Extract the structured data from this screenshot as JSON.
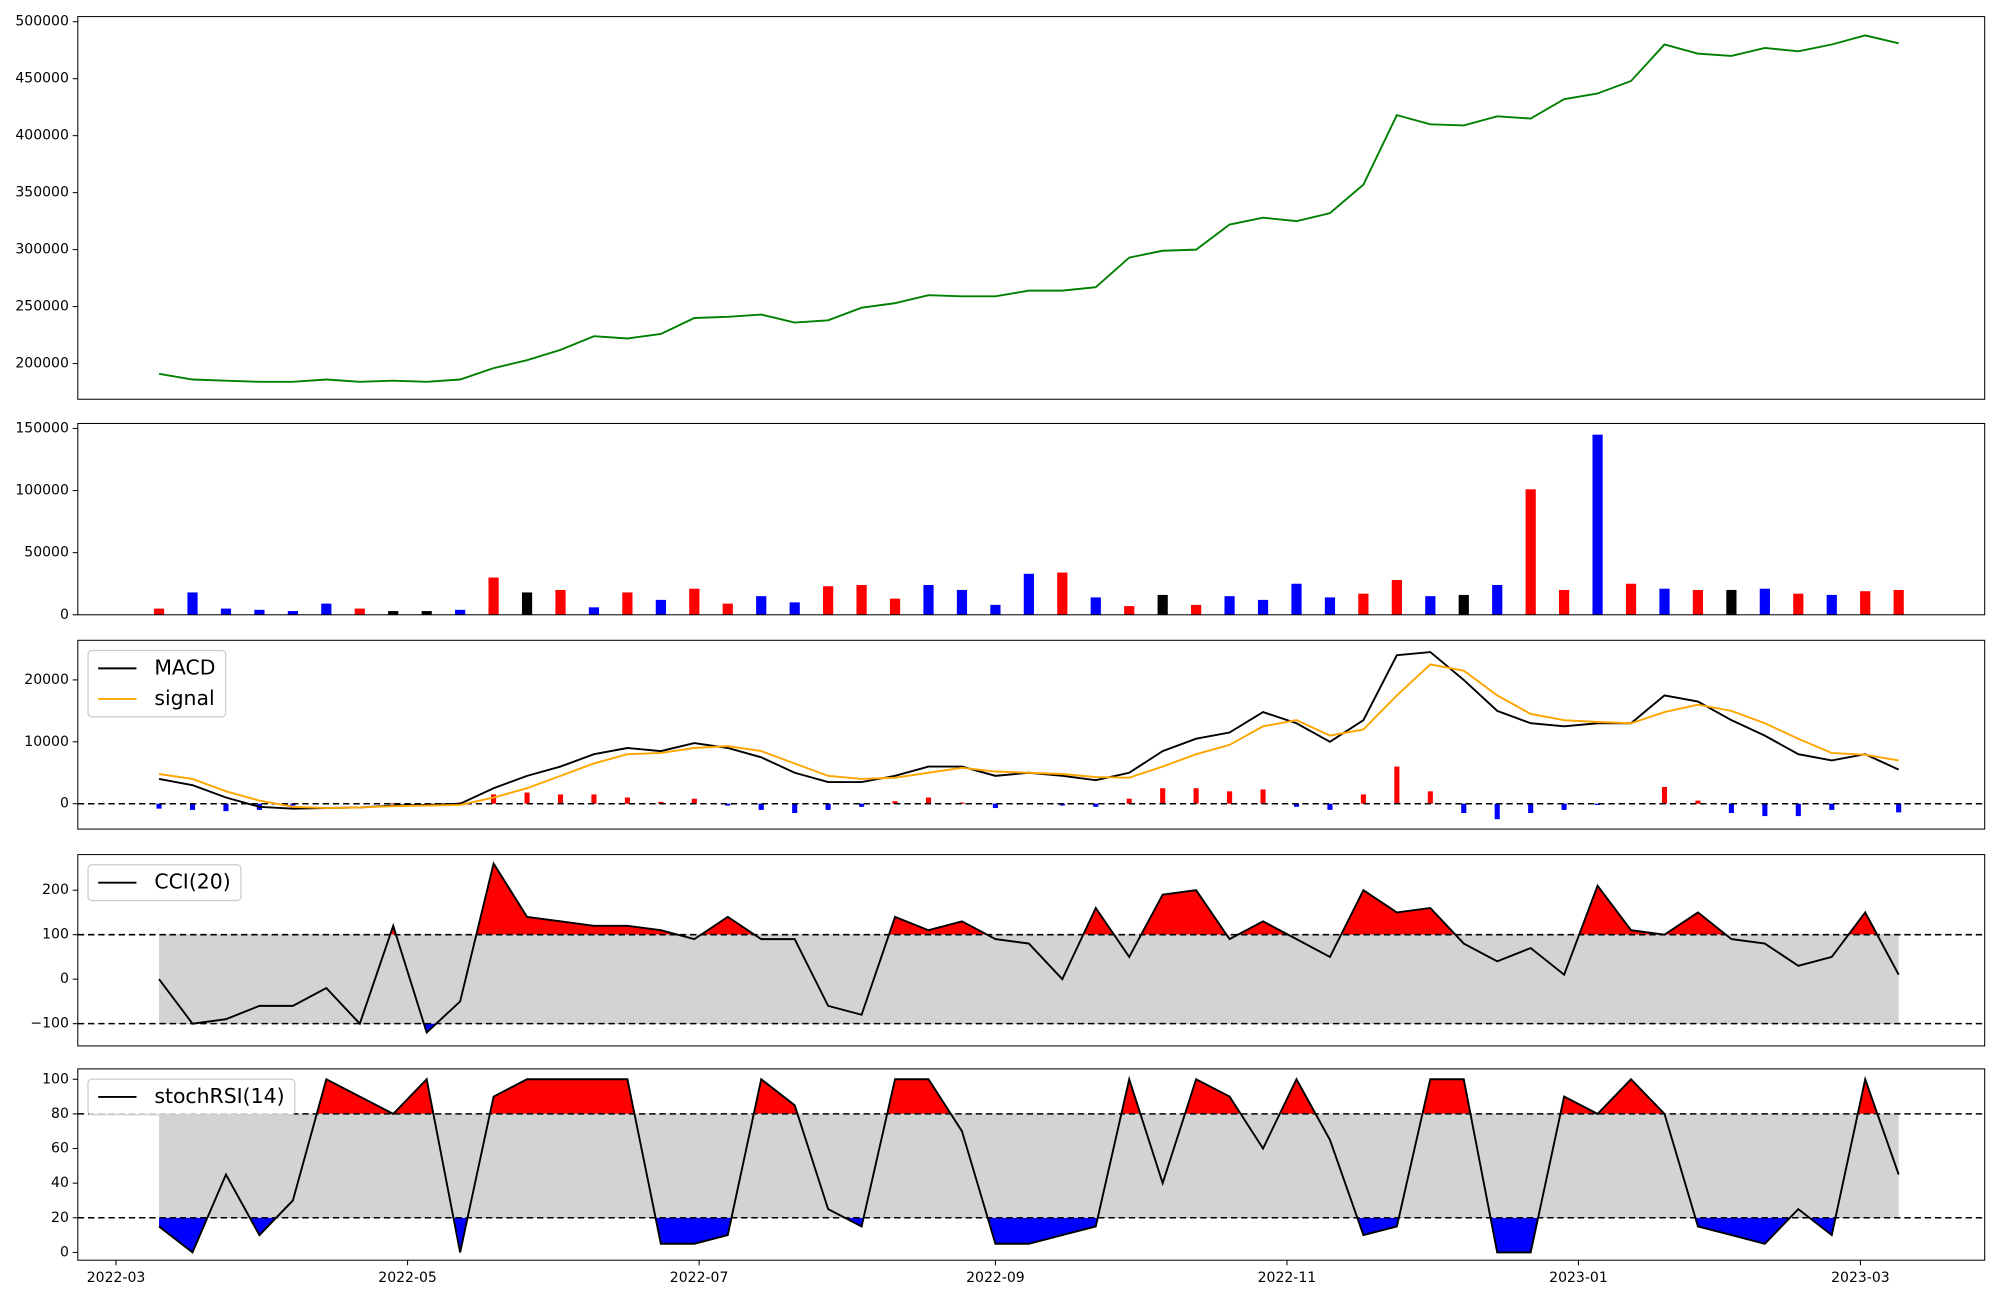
{
  "chart_data": [
    {
      "type": "line",
      "color": "green",
      "x": [
        "2022-03-10",
        "2022-03-17",
        "2022-03-24",
        "2022-03-31",
        "2022-04-07",
        "2022-04-14",
        "2022-04-21",
        "2022-04-28",
        "2022-05-05",
        "2022-05-12",
        "2022-05-19",
        "2022-05-26",
        "2022-06-02",
        "2022-06-09",
        "2022-06-16",
        "2022-06-23",
        "2022-06-30",
        "2022-07-07",
        "2022-07-14",
        "2022-07-21",
        "2022-07-28",
        "2022-08-04",
        "2022-08-11",
        "2022-08-18",
        "2022-08-25",
        "2022-09-01",
        "2022-09-08",
        "2022-09-15",
        "2022-09-22",
        "2022-09-29",
        "2022-10-06",
        "2022-10-13",
        "2022-10-20",
        "2022-10-27",
        "2022-11-03",
        "2022-11-10",
        "2022-11-17",
        "2022-11-24",
        "2022-12-01",
        "2022-12-08",
        "2022-12-15",
        "2022-12-22",
        "2022-12-29",
        "2023-01-05",
        "2023-01-12",
        "2023-01-19",
        "2023-01-26",
        "2023-02-02",
        "2023-02-09",
        "2023-02-16",
        "2023-02-23",
        "2023-03-02",
        "2023-03-09"
      ],
      "values": [
        191000,
        186000,
        185000,
        184000,
        184000,
        186000,
        184000,
        185000,
        184000,
        186000,
        196000,
        203000,
        212000,
        224000,
        222000,
        226000,
        240000,
        241000,
        243000,
        236000,
        238000,
        249000,
        253000,
        260000,
        259000,
        259000,
        264000,
        264000,
        267000,
        293000,
        299000,
        300000,
        322000,
        328000,
        325000,
        332000,
        357000,
        418000,
        410000,
        409000,
        417000,
        415000,
        432000,
        437000,
        448000,
        480000,
        472000,
        470000,
        477000,
        474000,
        480000,
        488000,
        481000
      ],
      "xlim": [
        "2022-02-21",
        "2023-03-27"
      ],
      "ylim": [
        168700,
        504500
      ],
      "yticks": [
        200000,
        250000,
        300000,
        350000,
        400000,
        450000,
        500000
      ]
    },
    {
      "type": "bar",
      "x": [
        "2022-03-10",
        "2022-03-17",
        "2022-03-24",
        "2022-03-31",
        "2022-04-07",
        "2022-04-14",
        "2022-04-21",
        "2022-04-28",
        "2022-05-05",
        "2022-05-12",
        "2022-05-19",
        "2022-05-26",
        "2022-06-02",
        "2022-06-09",
        "2022-06-16",
        "2022-06-23",
        "2022-06-30",
        "2022-07-07",
        "2022-07-14",
        "2022-07-21",
        "2022-07-28",
        "2022-08-04",
        "2022-08-11",
        "2022-08-18",
        "2022-08-25",
        "2022-09-01",
        "2022-09-08",
        "2022-09-15",
        "2022-09-22",
        "2022-09-29",
        "2022-10-06",
        "2022-10-13",
        "2022-10-20",
        "2022-10-27",
        "2022-11-03",
        "2022-11-10",
        "2022-11-17",
        "2022-11-24",
        "2022-12-01",
        "2022-12-08",
        "2022-12-15",
        "2022-12-22",
        "2022-12-29",
        "2023-01-05",
        "2023-01-12",
        "2023-01-19",
        "2023-01-26",
        "2023-02-02",
        "2023-02-09",
        "2023-02-16",
        "2023-02-23",
        "2023-03-02",
        "2023-03-09"
      ],
      "values": [
        5000,
        18000,
        5000,
        4000,
        3000,
        9000,
        5000,
        3000,
        3000,
        4000,
        30000,
        18000,
        20000,
        6000,
        18000,
        12000,
        21000,
        9000,
        15000,
        10000,
        23000,
        24000,
        13000,
        24000,
        20000,
        8000,
        33000,
        34000,
        14000,
        7000,
        16000,
        8000,
        15000,
        12000,
        25000,
        14000,
        17000,
        28000,
        15000,
        16000,
        24000,
        101000,
        20000,
        145000,
        25000,
        21000,
        20000,
        20000,
        21000,
        17000,
        16000,
        19000,
        20000
      ],
      "colors": [
        "red",
        "blue",
        "blue",
        "blue",
        "blue",
        "blue",
        "red",
        "black",
        "black",
        "blue",
        "red",
        "black",
        "red",
        "blue",
        "red",
        "blue",
        "red",
        "red",
        "blue",
        "blue",
        "red",
        "red",
        "red",
        "blue",
        "blue",
        "blue",
        "blue",
        "red",
        "blue",
        "red",
        "black",
        "red",
        "blue",
        "blue",
        "blue",
        "blue",
        "red",
        "red",
        "blue",
        "black",
        "blue",
        "red",
        "red",
        "blue",
        "red",
        "blue",
        "red",
        "black",
        "blue",
        "red",
        "blue",
        "red",
        "red"
      ],
      "xlim": [
        "2022-02-21",
        "2023-03-27"
      ],
      "ylim": [
        0,
        154000
      ],
      "yticks": [
        0,
        50000,
        100000,
        150000
      ]
    },
    {
      "type": "macd",
      "x": [
        "2022-03-10",
        "2022-03-17",
        "2022-03-24",
        "2022-03-31",
        "2022-04-07",
        "2022-04-14",
        "2022-04-21",
        "2022-04-28",
        "2022-05-05",
        "2022-05-12",
        "2022-05-19",
        "2022-05-26",
        "2022-06-02",
        "2022-06-09",
        "2022-06-16",
        "2022-06-23",
        "2022-06-30",
        "2022-07-07",
        "2022-07-14",
        "2022-07-21",
        "2022-07-28",
        "2022-08-04",
        "2022-08-11",
        "2022-08-18",
        "2022-08-25",
        "2022-09-01",
        "2022-09-08",
        "2022-09-15",
        "2022-09-22",
        "2022-09-29",
        "2022-10-06",
        "2022-10-13",
        "2022-10-20",
        "2022-10-27",
        "2022-11-03",
        "2022-11-10",
        "2022-11-17",
        "2022-11-24",
        "2022-12-01",
        "2022-12-08",
        "2022-12-15",
        "2022-12-22",
        "2022-12-29",
        "2023-01-05",
        "2023-01-12",
        "2023-01-19",
        "2023-01-26",
        "2023-02-02",
        "2023-02-09",
        "2023-02-16",
        "2023-02-23",
        "2023-03-02",
        "2023-03-09"
      ],
      "series": [
        {
          "name": "MACD",
          "color": "black",
          "values": [
            4000,
            3000,
            1000,
            -500,
            -800,
            -700,
            -600,
            -300,
            -200,
            0,
            2500,
            4500,
            6000,
            8000,
            9000,
            8500,
            9800,
            9000,
            7500,
            5000,
            3500,
            3500,
            4500,
            6000,
            6000,
            4500,
            5000,
            4500,
            3800,
            5000,
            8500,
            10500,
            11500,
            14800,
            13000,
            10000,
            13500,
            24000,
            24500,
            20000,
            15000,
            13000,
            12500,
            13000,
            13000,
            17500,
            16500,
            13500,
            11000,
            8000,
            7000,
            8000,
            5500
          ]
        },
        {
          "name": "signal",
          "color": "orange",
          "values": [
            4800,
            4000,
            2000,
            500,
            -500,
            -700,
            -600,
            -400,
            -300,
            -200,
            1000,
            2500,
            4500,
            6500,
            8000,
            8200,
            9000,
            9300,
            8500,
            6500,
            4500,
            4000,
            4200,
            5000,
            5800,
            5200,
            5000,
            4800,
            4300,
            4200,
            6000,
            8000,
            9500,
            12500,
            13500,
            11000,
            12000,
            17500,
            22500,
            21500,
            17500,
            14500,
            13500,
            13200,
            13000,
            14800,
            16000,
            15000,
            13000,
            10500,
            8200,
            7900,
            7000
          ]
        }
      ],
      "histogram": {
        "positive_color": "red",
        "negative_color": "blue",
        "values": [
          -800,
          -1000,
          -1200,
          -1000,
          -300,
          0,
          0,
          100,
          100,
          200,
          1500,
          1800,
          1500,
          1500,
          1000,
          300,
          800,
          -300,
          -1000,
          -1500,
          -1000,
          -500,
          400,
          1000,
          200,
          -700,
          0,
          -300,
          -500,
          800,
          2500,
          2500,
          2000,
          2300,
          -500,
          -1000,
          1500,
          6000,
          2000,
          -1500,
          -2500,
          -1500,
          -1000,
          -200,
          0,
          2700,
          500,
          -1500,
          -2000,
          -2000,
          -1000,
          100,
          -1400
        ]
      },
      "hline": 0,
      "legend": "upper left",
      "xlim": [
        "2022-02-21",
        "2023-03-27"
      ],
      "ylim": [
        -4100,
        26400
      ],
      "yticks": [
        0,
        10000,
        20000
      ]
    },
    {
      "type": "band",
      "x": [
        "2022-03-10",
        "2022-03-17",
        "2022-03-24",
        "2022-03-31",
        "2022-04-07",
        "2022-04-14",
        "2022-04-21",
        "2022-04-28",
        "2022-05-05",
        "2022-05-12",
        "2022-05-19",
        "2022-05-26",
        "2022-06-02",
        "2022-06-09",
        "2022-06-16",
        "2022-06-23",
        "2022-06-30",
        "2022-07-07",
        "2022-07-14",
        "2022-07-21",
        "2022-07-28",
        "2022-08-04",
        "2022-08-11",
        "2022-08-18",
        "2022-08-25",
        "2022-09-01",
        "2022-09-08",
        "2022-09-15",
        "2022-09-22",
        "2022-09-29",
        "2022-10-06",
        "2022-10-13",
        "2022-10-20",
        "2022-10-27",
        "2022-11-03",
        "2022-11-10",
        "2022-11-17",
        "2022-11-24",
        "2022-12-01",
        "2022-12-08",
        "2022-12-15",
        "2022-12-22",
        "2022-12-29",
        "2023-01-05",
        "2023-01-12",
        "2023-01-19",
        "2023-01-26",
        "2023-02-02",
        "2023-02-09",
        "2023-02-16",
        "2023-02-23",
        "2023-03-02",
        "2023-03-09"
      ],
      "series": [
        {
          "name": "CCI(20)",
          "color": "black",
          "values": [
            0,
            -100,
            -90,
            -60,
            -60,
            -20,
            -100,
            120,
            -120,
            -50,
            260,
            140,
            130,
            120,
            120,
            110,
            90,
            140,
            90,
            90,
            -60,
            -80,
            140,
            110,
            130,
            90,
            80,
            0,
            160,
            50,
            190,
            200,
            90,
            130,
            90,
            50,
            200,
            150,
            160,
            80,
            40,
            70,
            10,
            210,
            110,
            100,
            150,
            90,
            80,
            30,
            50,
            150,
            10
          ]
        }
      ],
      "upper": 100,
      "lower": -100,
      "band_color": "lightgray",
      "upper_color": "red",
      "lower_color": "blue",
      "legend": "upper left",
      "xlim": [
        "2022-02-21",
        "2023-03-27"
      ],
      "ylim": [
        -150,
        280
      ],
      "yticks": [
        {
          "value": -100,
          "label": "−100"
        },
        0,
        100,
        200
      ]
    },
    {
      "type": "band",
      "x": [
        "2022-03-10",
        "2022-03-17",
        "2022-03-24",
        "2022-03-31",
        "2022-04-07",
        "2022-04-14",
        "2022-04-21",
        "2022-04-28",
        "2022-05-05",
        "2022-05-12",
        "2022-05-19",
        "2022-05-26",
        "2022-06-02",
        "2022-06-09",
        "2022-06-16",
        "2022-06-23",
        "2022-06-30",
        "2022-07-07",
        "2022-07-14",
        "2022-07-21",
        "2022-07-28",
        "2022-08-04",
        "2022-08-11",
        "2022-08-18",
        "2022-08-25",
        "2022-09-01",
        "2022-09-08",
        "2022-09-15",
        "2022-09-22",
        "2022-09-29",
        "2022-10-06",
        "2022-10-13",
        "2022-10-20",
        "2022-10-27",
        "2022-11-03",
        "2022-11-10",
        "2022-11-17",
        "2022-11-24",
        "2022-12-01",
        "2022-12-08",
        "2022-12-15",
        "2022-12-22",
        "2022-12-29",
        "2023-01-05",
        "2023-01-12",
        "2023-01-19",
        "2023-01-26",
        "2023-02-02",
        "2023-02-09",
        "2023-02-16",
        "2023-02-23",
        "2023-03-02",
        "2023-03-09"
      ],
      "series": [
        {
          "name": "stochRSI(14)",
          "color": "black",
          "values": [
            15,
            0,
            45,
            10,
            30,
            100,
            90,
            80,
            100,
            0,
            90,
            100,
            100,
            100,
            100,
            5,
            5,
            10,
            100,
            85,
            25,
            15,
            100,
            100,
            70,
            5,
            5,
            10,
            15,
            100,
            40,
            100,
            90,
            60,
            100,
            65,
            10,
            15,
            100,
            100,
            0,
            0,
            90,
            80,
            100,
            80,
            15,
            10,
            5,
            25,
            10,
            100,
            45
          ]
        }
      ],
      "upper": 80,
      "lower": 20,
      "band_color": "lightgray",
      "upper_color": "red",
      "lower_color": "blue",
      "legend": "upper left",
      "xlim": [
        "2022-02-21",
        "2023-03-27"
      ],
      "ylim": [
        -4.5,
        106
      ],
      "yticks": [
        0,
        20,
        40,
        60,
        80,
        100
      ],
      "xticks": [
        {
          "value": "2022-03-01",
          "label": "2022-03"
        },
        {
          "value": "2022-05-01",
          "label": "2022-05"
        },
        {
          "value": "2022-07-01",
          "label": "2022-07"
        },
        {
          "value": "2022-09-01",
          "label": "2022-09"
        },
        {
          "value": "2022-11-01",
          "label": "2022-11"
        },
        {
          "value": "2023-01-01",
          "label": "2023-01"
        },
        {
          "value": "2023-03-01",
          "label": "2023-03"
        }
      ]
    }
  ]
}
